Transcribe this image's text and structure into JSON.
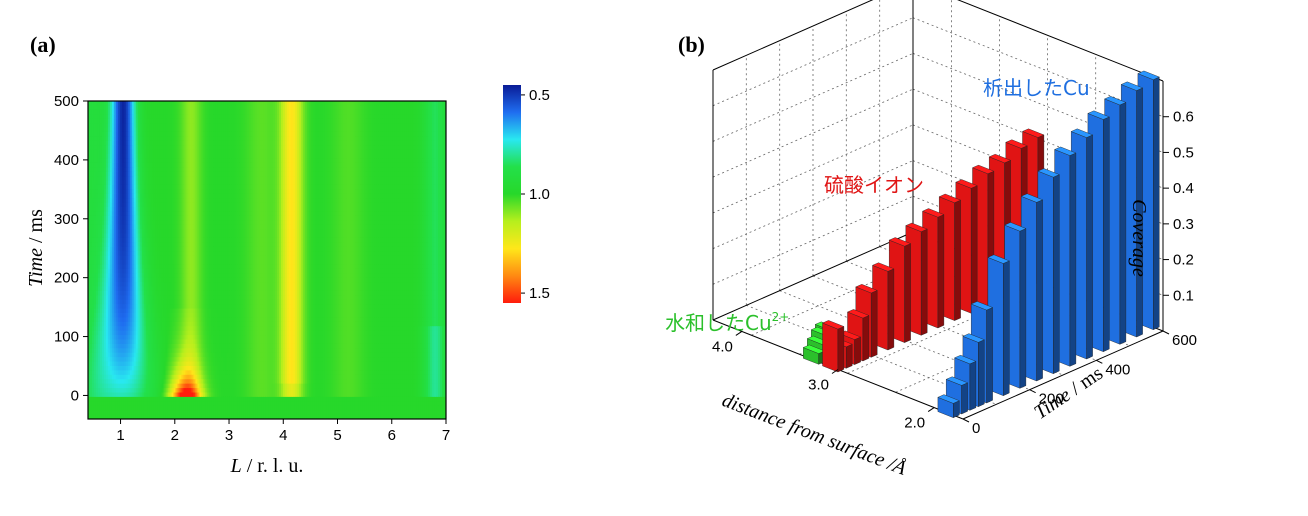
{
  "panels": {
    "a": {
      "label": "(a)"
    },
    "b": {
      "label": "(b)"
    }
  },
  "chart_data": [
    {
      "type": "heatmap",
      "xlabel_var": "L",
      "xlabel_unit": " / r. l. u.",
      "ylabel_var": "Time",
      "ylabel_unit": " / ms",
      "xlim": [
        0.4,
        7
      ],
      "ylim": [
        -40,
        500
      ],
      "x_ticks": [
        "1",
        "2",
        "3",
        "4",
        "5",
        "6",
        "7"
      ],
      "x_tick_values": [
        1,
        2,
        3,
        4,
        5,
        6,
        7
      ],
      "y_ticks": [
        "0",
        "100",
        "200",
        "300",
        "400",
        "500"
      ],
      "y_tick_values": [
        0,
        100,
        200,
        300,
        400,
        500
      ],
      "colorbar": {
        "ticks": [
          "0.5",
          "1.0",
          "1.5"
        ],
        "tick_values": [
          0.5,
          1.0,
          1.5
        ],
        "range": [
          0.45,
          1.55
        ],
        "colors": [
          "#0a1c96",
          "#1f6df0",
          "#29e8f0",
          "#23e04a",
          "#27d82a",
          "#b6ef1d",
          "#ffe71a",
          "#ff8a12",
          "#ff1c0c"
        ]
      }
    },
    {
      "type": "bar",
      "subtype": "3d-bar",
      "xlabel": "distance from surface /Å",
      "ylabel_var": "Time",
      "ylabel_unit": " / ms",
      "zlabel": "Coverage",
      "distance_ticks": [
        "4.0",
        "3.0",
        "2.0"
      ],
      "distance_tick_values": [
        4.0,
        3.0,
        2.0
      ],
      "time_ticks": [
        "0",
        "200",
        "400",
        "600"
      ],
      "time_tick_values": [
        0,
        200,
        400,
        600
      ],
      "coverage_ticks": [
        "0.1",
        "0.2",
        "0.3",
        "0.4",
        "0.5",
        "0.6"
      ],
      "coverage_tick_values": [
        0.1,
        0.2,
        0.3,
        0.4,
        0.5,
        0.6
      ],
      "series": [
        {
          "name": "析出したCu",
          "name_sup": "",
          "color": "#1f6fe0",
          "distance": 1.85,
          "time": [
            0,
            25,
            50,
            75,
            100,
            150,
            200,
            250,
            300,
            350,
            400,
            450,
            500,
            550,
            600
          ],
          "coverage": [
            0.04,
            0.08,
            0.13,
            0.18,
            0.26,
            0.37,
            0.44,
            0.5,
            0.55,
            0.59,
            0.62,
            0.65,
            0.67,
            0.69,
            0.7
          ]
        },
        {
          "name": "硫酸イオン",
          "name_sup": "",
          "color": "#e01414",
          "distance": 3.05,
          "time": [
            0,
            25,
            50,
            75,
            100,
            150,
            200,
            250,
            300,
            350,
            400,
            450,
            500,
            550,
            600
          ],
          "coverage": [
            0.12,
            0.06,
            0.07,
            0.12,
            0.18,
            0.22,
            0.27,
            0.29,
            0.31,
            0.33,
            0.35,
            0.37,
            0.38,
            0.4,
            0.41
          ]
        },
        {
          "name": "水和したCu",
          "name_sup": "2+",
          "color": "#2bc02b",
          "distance": 3.25,
          "time": [
            0,
            12,
            24,
            36,
            48,
            60
          ],
          "coverage": [
            0.03,
            0.05,
            0.07,
            0.08,
            0.07,
            0.05
          ]
        }
      ]
    }
  ]
}
